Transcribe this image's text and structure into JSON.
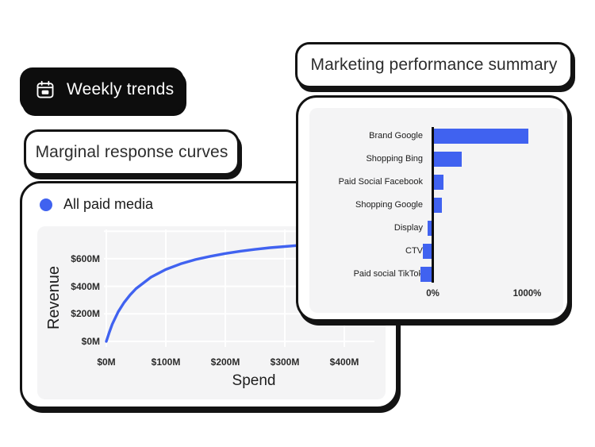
{
  "colors": {
    "accent_blue": "#4062F0",
    "panel_gray": "#F4F4F5",
    "ink_black": "#131313",
    "text_dark": "#2D2D2D"
  },
  "badges": {
    "weekly_trends": {
      "label": "Weekly trends",
      "icon": "calendar-icon"
    },
    "marginal_title": {
      "label": "Marginal response curves"
    },
    "marketing_title": {
      "label": "Marketing performance summary"
    }
  },
  "response_card": {
    "legend_label": "All paid media"
  },
  "chart_data": [
    {
      "type": "bar",
      "orientation": "horizontal",
      "title": "Marketing performance summary",
      "categories": [
        "Brand Google",
        "Shopping Bing",
        "Paid Social Facebook",
        "Shopping Google",
        "Display",
        "CTV",
        "Paid social TikTok"
      ],
      "values": [
        1000,
        295,
        105,
        80,
        -40,
        -90,
        -115
      ],
      "unit": "%",
      "bar_color": "#4062F0",
      "x_ticks": [
        {
          "label": "0%",
          "value": 0
        },
        {
          "label": "1000%",
          "value": 1000
        }
      ],
      "xlim": [
        -200,
        1450
      ],
      "grid": false,
      "legend_position": "none"
    },
    {
      "type": "line",
      "title": "Marginal response curves",
      "xlabel": "Spend",
      "ylabel": "Revenue",
      "series": [
        {
          "name": "All paid media",
          "color": "#4062F0",
          "points": [
            [
              0,
              0
            ],
            [
              5,
              66
            ],
            [
              10,
              125
            ],
            [
              20,
              215
            ],
            [
              30,
              283
            ],
            [
              40,
              338
            ],
            [
              50,
              383
            ],
            [
              75,
              466
            ],
            [
              100,
              522
            ],
            [
              125,
              563
            ],
            [
              150,
              594
            ],
            [
              175,
              618
            ],
            [
              200,
              638
            ],
            [
              225,
              655
            ],
            [
              250,
              668
            ],
            [
              275,
              680
            ],
            [
              300,
              689
            ],
            [
              325,
              698
            ],
            [
              350,
              705
            ],
            [
              375,
              711
            ],
            [
              400,
              718
            ],
            [
              420,
              722
            ],
            [
              440,
              726
            ]
          ]
        }
      ],
      "x_ticks": [
        {
          "label": "$0M",
          "value": 0
        },
        {
          "label": "$100M",
          "value": 100
        },
        {
          "label": "$200M",
          "value": 200
        },
        {
          "label": "$300M",
          "value": 300
        },
        {
          "label": "$400M",
          "value": 400
        }
      ],
      "y_ticks": [
        {
          "label": "$0M",
          "value": 0
        },
        {
          "label": "$200M",
          "value": 200
        },
        {
          "label": "$400M",
          "value": 400
        },
        {
          "label": "$600M",
          "value": 600
        }
      ],
      "xlim": [
        0,
        450
      ],
      "ylim": [
        0,
        840
      ],
      "grid": true,
      "legend_position": "top-left"
    }
  ]
}
